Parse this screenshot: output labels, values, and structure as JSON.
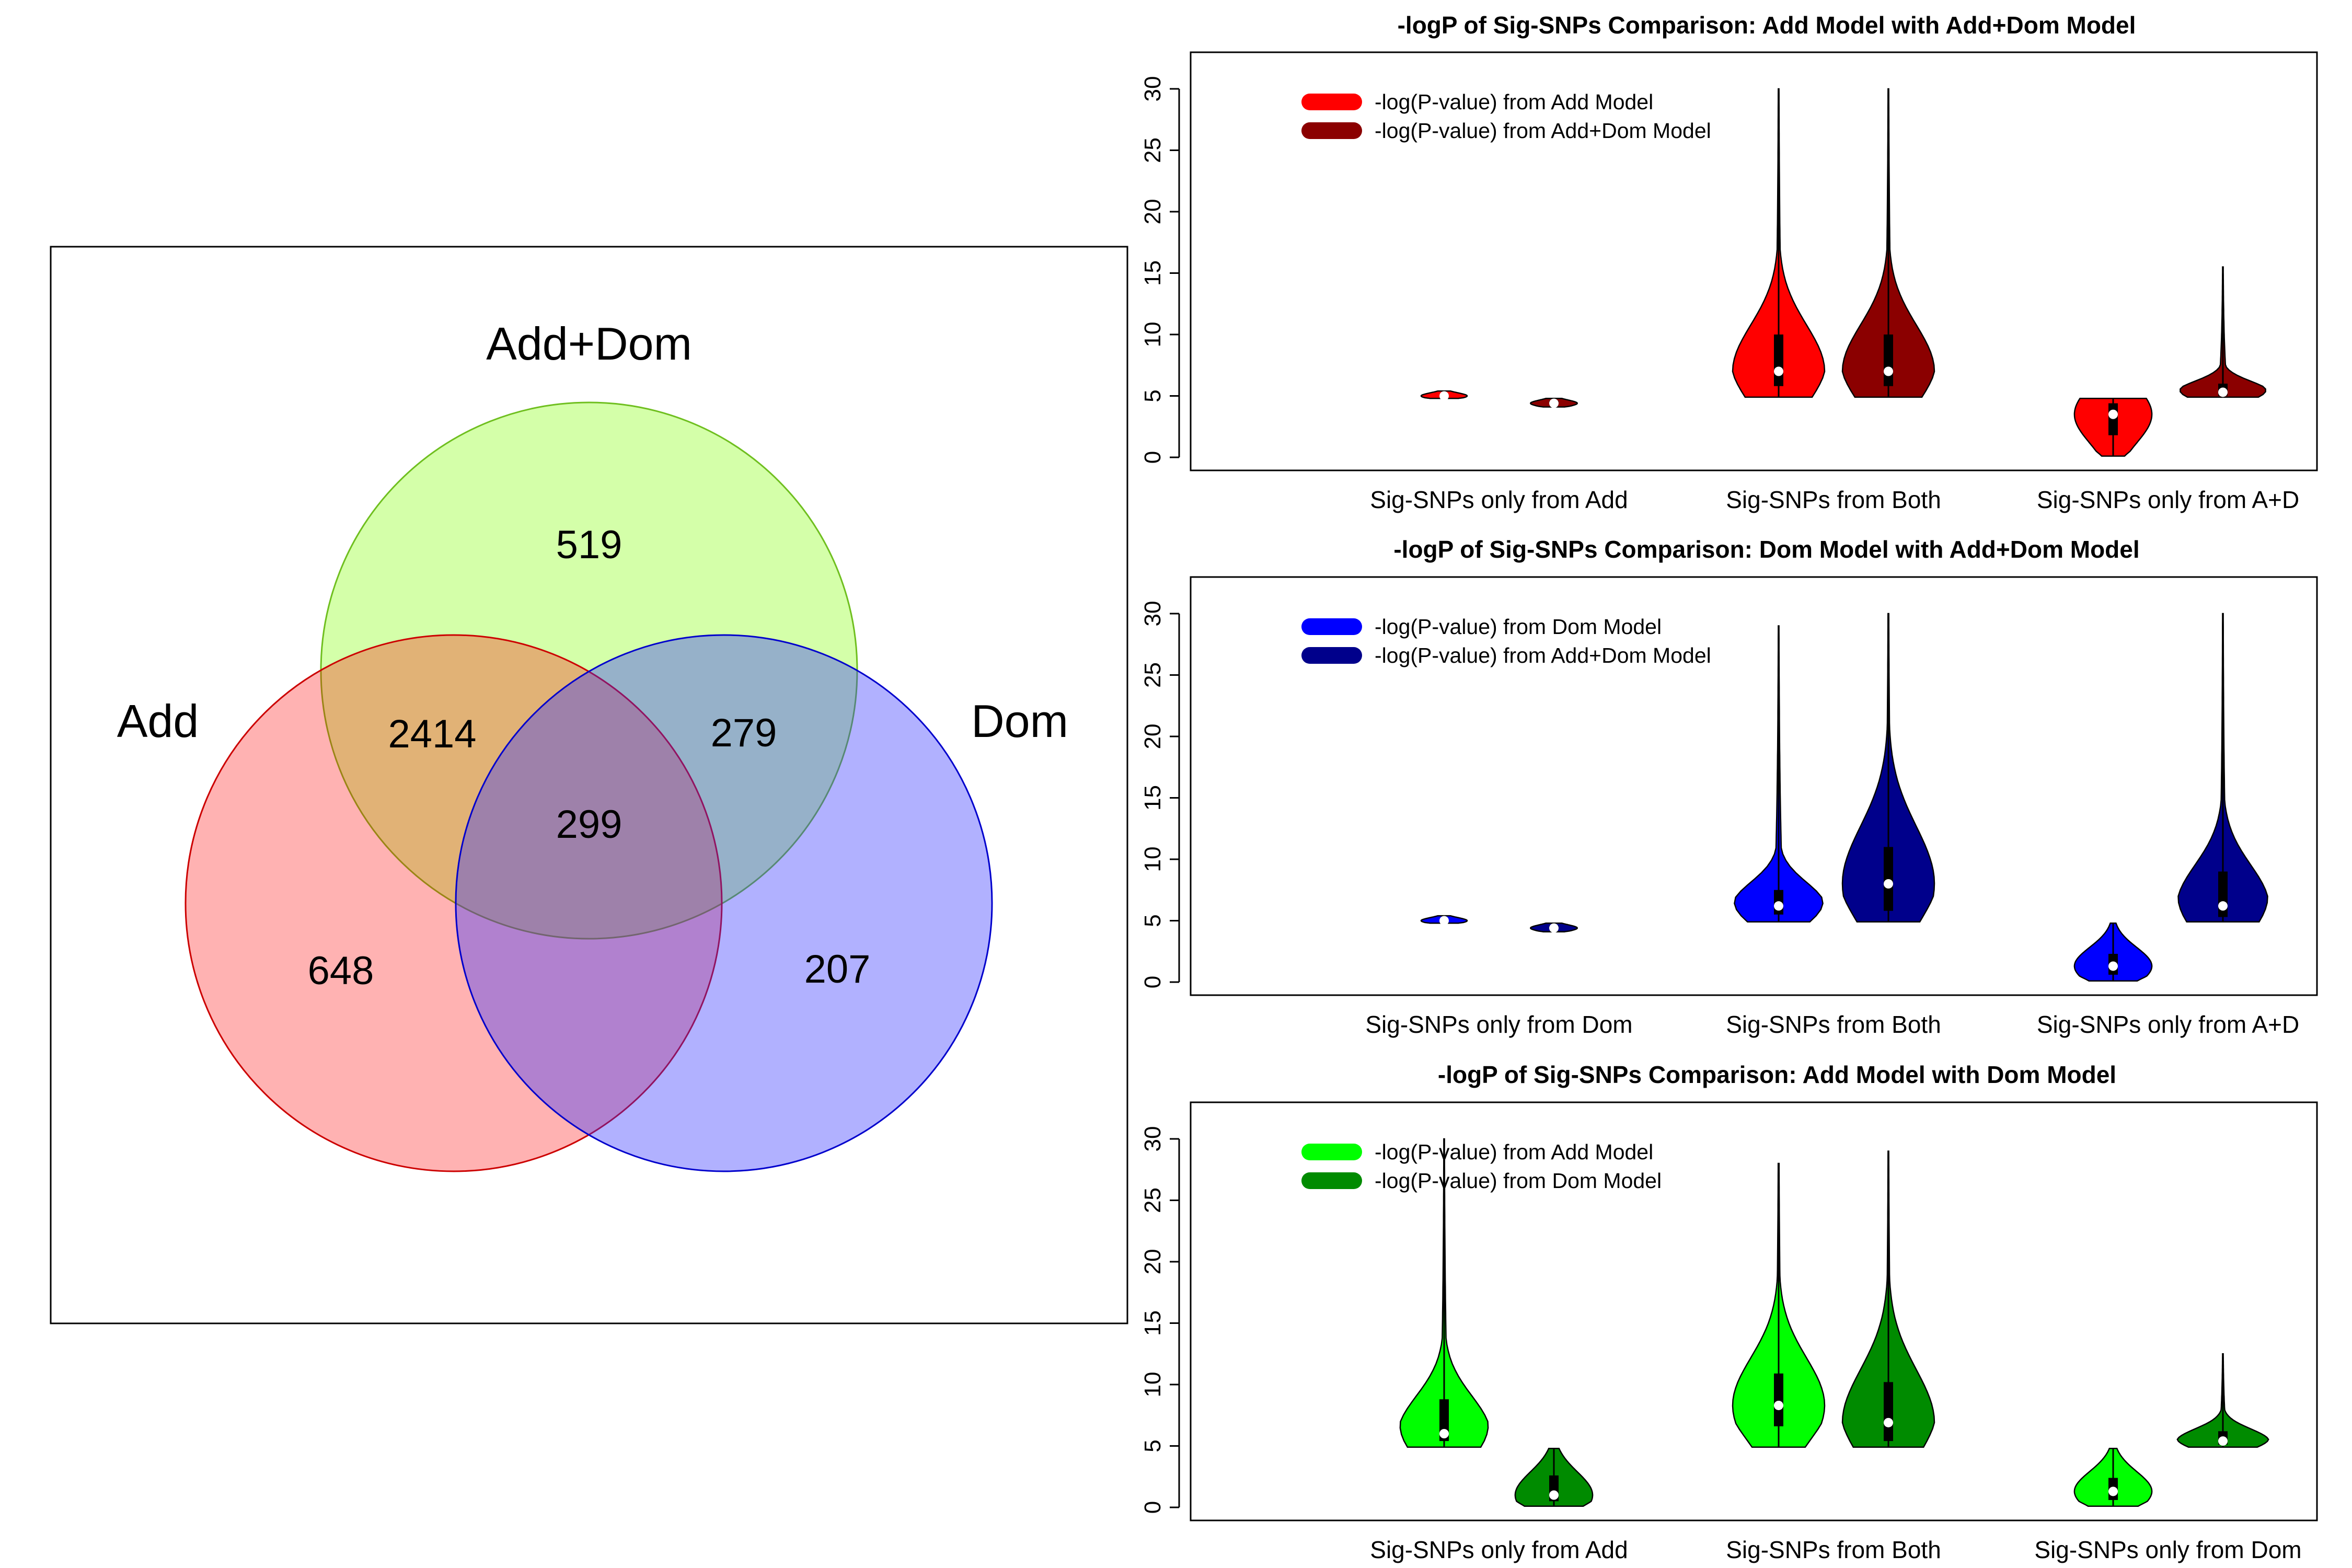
{
  "venn": {
    "sets": [
      {
        "label": "Add",
        "color": "#ff0000"
      },
      {
        "label": "Add+Dom",
        "color": "#99ff33"
      },
      {
        "label": "Dom",
        "color": "#3333ff"
      }
    ],
    "regions": {
      "add_only": "648",
      "adddom_only": "519",
      "dom_only": "207",
      "add_adddom": "2414",
      "adddom_dom": "279",
      "add_dom": "",
      "all": "299"
    }
  },
  "chart_data": [
    {
      "type": "violin",
      "title": "-logP of Sig-SNPs Comparison: Add Model with Add+Dom Model",
      "categories": [
        "Sig-SNPs only from Add",
        "Sig-SNPs from Both",
        "Sig-SNPs only from A+D"
      ],
      "ylim": [
        0,
        30
      ],
      "yticks": [
        0,
        5,
        10,
        15,
        20,
        25,
        30
      ],
      "legend_position": "top-left",
      "series": [
        {
          "name": "-log(P-value) from Add Model",
          "color": "#ff0000",
          "median": [
            5.0,
            7.0,
            3.5
          ],
          "q1": [
            4.9,
            5.8,
            1.8
          ],
          "q3": [
            5.1,
            10.0,
            4.4
          ],
          "min": [
            4.8,
            4.9,
            0.1
          ],
          "max": [
            5.4,
            30.0,
            4.8
          ]
        },
        {
          "name": "-log(P-value) from Add+Dom Model",
          "color": "#8b0000",
          "median": [
            4.4,
            7.0,
            5.3
          ],
          "q1": [
            4.3,
            5.8,
            5.0
          ],
          "q3": [
            4.6,
            10.0,
            6.0
          ],
          "min": [
            4.1,
            4.9,
            4.9
          ],
          "max": [
            4.8,
            30.0,
            15.5
          ]
        }
      ]
    },
    {
      "type": "violin",
      "title": "-logP of Sig-SNPs Comparison: Dom Model with Add+Dom Model",
      "categories": [
        "Sig-SNPs only from Dom",
        "Sig-SNPs from Both",
        "Sig-SNPs only from A+D"
      ],
      "ylim": [
        0,
        30
      ],
      "yticks": [
        0,
        5,
        10,
        15,
        20,
        25,
        30
      ],
      "legend_position": "top-left",
      "series": [
        {
          "name": "-log(P-value) from Dom Model",
          "color": "#0000ff",
          "median": [
            5.0,
            6.2,
            1.3
          ],
          "q1": [
            4.9,
            5.5,
            0.6
          ],
          "q3": [
            5.1,
            7.5,
            2.3
          ],
          "min": [
            4.8,
            4.9,
            0.1
          ],
          "max": [
            5.4,
            29.0,
            4.8
          ]
        },
        {
          "name": "-log(P-value) from Add+Dom Model",
          "color": "#00008b",
          "median": [
            4.4,
            8.0,
            6.2
          ],
          "q1": [
            4.3,
            5.8,
            5.3
          ],
          "q3": [
            4.6,
            11.0,
            9.0
          ],
          "min": [
            4.1,
            4.9,
            4.9
          ],
          "max": [
            4.8,
            30.0,
            30.0
          ]
        }
      ]
    },
    {
      "type": "violin",
      "title": "-logP of Sig-SNPs Comparison: Add Model with Dom Model",
      "categories": [
        "Sig-SNPs only from Add",
        "Sig-SNPs from Both",
        "Sig-SNPs only from Dom"
      ],
      "ylim": [
        0,
        30
      ],
      "yticks": [
        0,
        5,
        10,
        15,
        20,
        25,
        30
      ],
      "legend_position": "top-left",
      "series": [
        {
          "name": "-log(P-value) from Add Model",
          "color": "#00ff00",
          "median": [
            6.0,
            8.3,
            1.3
          ],
          "q1": [
            5.4,
            6.6,
            0.6
          ],
          "q3": [
            8.8,
            10.9,
            2.4
          ],
          "min": [
            4.9,
            4.9,
            0.1
          ],
          "max": [
            30.0,
            28.0,
            4.8
          ]
        },
        {
          "name": "-log(P-value) from Dom Model",
          "color": "#008b00",
          "median": [
            1.0,
            6.9,
            5.4
          ],
          "q1": [
            0.5,
            5.4,
            5.1
          ],
          "q3": [
            2.6,
            10.2,
            6.2
          ],
          "min": [
            0.1,
            4.9,
            4.9
          ],
          "max": [
            4.8,
            29.0,
            12.5
          ]
        }
      ]
    }
  ]
}
